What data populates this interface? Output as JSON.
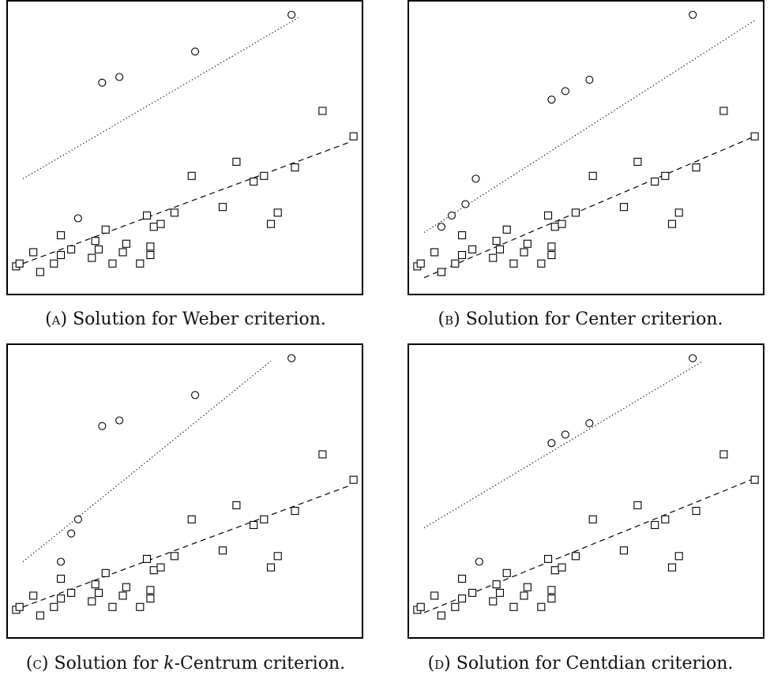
{
  "chart_data": [
    {
      "type": "scatter",
      "caption": {
        "tag": "(a)",
        "text": "Solution for Weber criterion."
      },
      "xlim": [
        0,
        100
      ],
      "ylim": [
        0,
        100
      ],
      "series": [
        {
          "marker": "circle",
          "points": [
            [
              19,
              25
            ],
            [
              26,
              73
            ],
            [
              31,
              75
            ],
            [
              53,
              84
            ],
            [
              81,
              97
            ]
          ]
        },
        {
          "marker": "square",
          "points": [
            [
              1,
              8
            ],
            [
              2,
              9
            ],
            [
              6,
              13
            ],
            [
              8,
              6
            ],
            [
              12,
              9
            ],
            [
              14,
              12
            ],
            [
              14,
              19
            ],
            [
              17,
              14
            ],
            [
              23,
              11
            ],
            [
              24,
              17
            ],
            [
              25,
              14
            ],
            [
              27,
              21
            ],
            [
              29,
              9
            ],
            [
              32,
              13
            ],
            [
              33,
              16
            ],
            [
              37,
              9
            ],
            [
              39,
              26
            ],
            [
              40,
              15
            ],
            [
              40,
              12
            ],
            [
              41,
              22
            ],
            [
              43,
              23
            ],
            [
              47,
              27
            ],
            [
              52,
              40
            ],
            [
              61,
              29
            ],
            [
              65,
              45
            ],
            [
              70,
              38
            ],
            [
              73,
              40
            ],
            [
              75,
              23
            ],
            [
              77,
              27
            ],
            [
              82,
              43
            ],
            [
              90,
              63
            ],
            [
              99,
              54
            ]
          ]
        }
      ],
      "lines": [
        {
          "style": "dotted",
          "from": [
            3,
            39
          ],
          "to": [
            83,
            96
          ]
        },
        {
          "style": "dashed",
          "from": [
            3,
            9
          ],
          "to": [
            98,
            52
          ]
        }
      ]
    },
    {
      "type": "scatter",
      "caption": {
        "tag": "(b)",
        "text": "Solution for Center criterion."
      },
      "xlim": [
        0,
        100
      ],
      "ylim": [
        0,
        100
      ],
      "series": [
        {
          "marker": "circle",
          "points": [
            [
              8,
              22
            ],
            [
              11,
              26
            ],
            [
              15,
              30
            ],
            [
              18,
              39
            ],
            [
              40,
              67
            ],
            [
              44,
              70
            ],
            [
              51,
              74
            ],
            [
              81,
              97
            ]
          ]
        },
        {
          "marker": "square",
          "points": [
            [
              1,
              8
            ],
            [
              2,
              9
            ],
            [
              6,
              13
            ],
            [
              8,
              6
            ],
            [
              12,
              9
            ],
            [
              14,
              12
            ],
            [
              14,
              19
            ],
            [
              17,
              14
            ],
            [
              23,
              11
            ],
            [
              24,
              17
            ],
            [
              25,
              14
            ],
            [
              27,
              21
            ],
            [
              29,
              9
            ],
            [
              32,
              13
            ],
            [
              33,
              16
            ],
            [
              37,
              9
            ],
            [
              39,
              26
            ],
            [
              40,
              15
            ],
            [
              40,
              12
            ],
            [
              41,
              22
            ],
            [
              43,
              23
            ],
            [
              47,
              27
            ],
            [
              52,
              40
            ],
            [
              61,
              29
            ],
            [
              65,
              45
            ],
            [
              70,
              38
            ],
            [
              73,
              40
            ],
            [
              75,
              23
            ],
            [
              77,
              27
            ],
            [
              82,
              43
            ],
            [
              90,
              63
            ],
            [
              99,
              54
            ]
          ]
        }
      ],
      "lines": [
        {
          "style": "dotted",
          "from": [
            3,
            20
          ],
          "to": [
            99,
            95
          ]
        },
        {
          "style": "dashed",
          "from": [
            3,
            4
          ],
          "to": [
            99,
            54
          ]
        }
      ]
    },
    {
      "type": "scatter",
      "caption": {
        "tag": "(c)",
        "text": "Solution for ",
        "italic": "k",
        "text2": "-Centrum criterion."
      },
      "xlim": [
        0,
        100
      ],
      "ylim": [
        0,
        100
      ],
      "series": [
        {
          "marker": "circle",
          "points": [
            [
              14,
              25
            ],
            [
              17,
              35
            ],
            [
              19,
              40
            ],
            [
              26,
              73
            ],
            [
              31,
              75
            ],
            [
              53,
              84
            ],
            [
              81,
              97
            ]
          ]
        },
        {
          "marker": "square",
          "points": [
            [
              1,
              8
            ],
            [
              2,
              9
            ],
            [
              6,
              13
            ],
            [
              8,
              6
            ],
            [
              12,
              9
            ],
            [
              14,
              12
            ],
            [
              14,
              19
            ],
            [
              17,
              14
            ],
            [
              23,
              11
            ],
            [
              24,
              17
            ],
            [
              25,
              14
            ],
            [
              27,
              21
            ],
            [
              29,
              9
            ],
            [
              32,
              13
            ],
            [
              33,
              16
            ],
            [
              37,
              9
            ],
            [
              39,
              26
            ],
            [
              40,
              15
            ],
            [
              40,
              12
            ],
            [
              41,
              22
            ],
            [
              43,
              23
            ],
            [
              47,
              27
            ],
            [
              52,
              40
            ],
            [
              61,
              29
            ],
            [
              65,
              45
            ],
            [
              70,
              38
            ],
            [
              73,
              40
            ],
            [
              75,
              23
            ],
            [
              77,
              27
            ],
            [
              82,
              43
            ],
            [
              90,
              63
            ],
            [
              99,
              54
            ]
          ]
        }
      ],
      "lines": [
        {
          "style": "dotted",
          "from": [
            3,
            25
          ],
          "to": [
            75,
            96
          ]
        },
        {
          "style": "dashed",
          "from": [
            3,
            9
          ],
          "to": [
            98,
            52
          ]
        }
      ]
    },
    {
      "type": "scatter",
      "caption": {
        "tag": "(d)",
        "text": "Solution for Centdian criterion."
      },
      "xlim": [
        0,
        100
      ],
      "ylim": [
        0,
        100
      ],
      "series": [
        {
          "marker": "circle",
          "points": [
            [
              19,
              25
            ],
            [
              40,
              67
            ],
            [
              44,
              70
            ],
            [
              51,
              74
            ],
            [
              81,
              97
            ]
          ]
        },
        {
          "marker": "square",
          "points": [
            [
              1,
              8
            ],
            [
              2,
              9
            ],
            [
              6,
              13
            ],
            [
              8,
              6
            ],
            [
              12,
              9
            ],
            [
              14,
              12
            ],
            [
              14,
              19
            ],
            [
              17,
              14
            ],
            [
              23,
              11
            ],
            [
              24,
              17
            ],
            [
              25,
              14
            ],
            [
              27,
              21
            ],
            [
              29,
              9
            ],
            [
              32,
              13
            ],
            [
              33,
              16
            ],
            [
              37,
              9
            ],
            [
              39,
              26
            ],
            [
              40,
              15
            ],
            [
              40,
              12
            ],
            [
              41,
              22
            ],
            [
              43,
              23
            ],
            [
              47,
              27
            ],
            [
              52,
              40
            ],
            [
              61,
              29
            ],
            [
              65,
              45
            ],
            [
              70,
              38
            ],
            [
              73,
              40
            ],
            [
              75,
              23
            ],
            [
              77,
              27
            ],
            [
              82,
              43
            ],
            [
              90,
              63
            ],
            [
              99,
              54
            ]
          ]
        }
      ],
      "lines": [
        {
          "style": "dotted",
          "from": [
            3,
            37
          ],
          "to": [
            84,
            96
          ]
        },
        {
          "style": "dashed",
          "from": [
            3,
            7
          ],
          "to": [
            98,
            54
          ]
        }
      ]
    }
  ]
}
